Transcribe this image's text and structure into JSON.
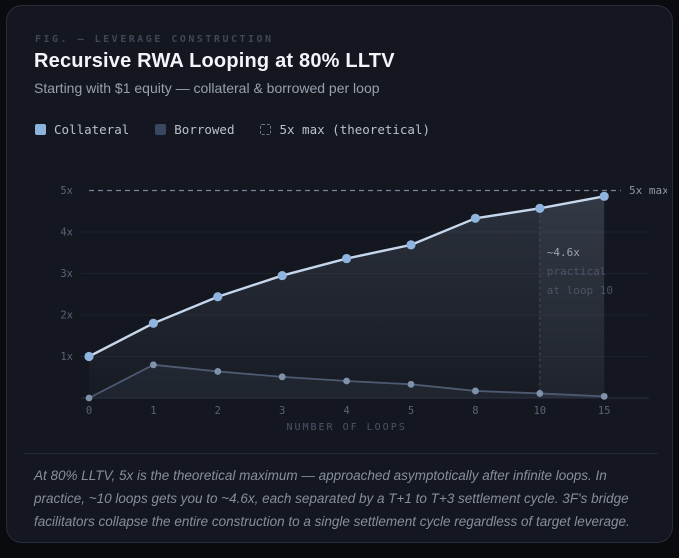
{
  "figure": {
    "eyebrow": "FIG. — LEVERAGE CONSTRUCTION",
    "title": "Recursive RWA Looping at 80% LLTV",
    "subtitle": "Starting with $1 equity — collateral & borrowed per loop"
  },
  "legend": [
    {
      "label": "Collateral",
      "swatch": "#8cb3dc",
      "type": "solid"
    },
    {
      "label": "Borrowed",
      "swatch": "#3a4760",
      "type": "solid"
    },
    {
      "label": "5x max (theoretical)",
      "swatch": "none",
      "type": "dashed"
    }
  ],
  "chart_data": {
    "type": "line",
    "title": "Recursive RWA Looping at 80% LLTV",
    "xlabel": "NUMBER OF LOOPS",
    "ylabel": "",
    "categories": [
      "0",
      "1",
      "2",
      "3",
      "4",
      "5",
      "8",
      "10",
      "15"
    ],
    "y_tick_labels": [
      "1x",
      "2x",
      "3x",
      "4x",
      "5x"
    ],
    "ylim": [
      0,
      5.2
    ],
    "grid": "horizontal",
    "legend_position": "top",
    "series": [
      {
        "name": "Collateral",
        "values": [
          1.0,
          1.8,
          2.44,
          2.95,
          3.36,
          3.69,
          4.33,
          4.57,
          4.86
        ],
        "line_color": "#c6d7ec",
        "point_color": "#8fb4dd"
      },
      {
        "name": "Borrowed",
        "values": [
          0,
          0.8,
          0.64,
          0.51,
          0.41,
          0.33,
          0.17,
          0.11,
          0.04
        ],
        "line_color": "#4d5a71",
        "point_color": "#7e92ac"
      }
    ],
    "reference_line": {
      "value": 5,
      "label": "5x max",
      "color": "#7b8494"
    },
    "annotation": {
      "x_category": "10",
      "lines": [
        "~4.6x",
        "practical",
        "at loop 10"
      ],
      "highlight_color": "#9aa5b6",
      "dim_color": "#4b5566"
    },
    "axis_color": "#2b3140",
    "grid_color": "#1c212b",
    "tick_label_color": "#596379",
    "xlabel_color": "#4a5468"
  },
  "caption": "At 80% LLTV, 5x is the theoretical maximum — approached asymptotically after infinite loops. In practice, ~10 loops gets you to ~4.6x, each separated by a T+1 to T+3 settlement cycle. 3F's bridge facilitators collapse the entire construction to a single settlement cycle regardless of target leverage."
}
